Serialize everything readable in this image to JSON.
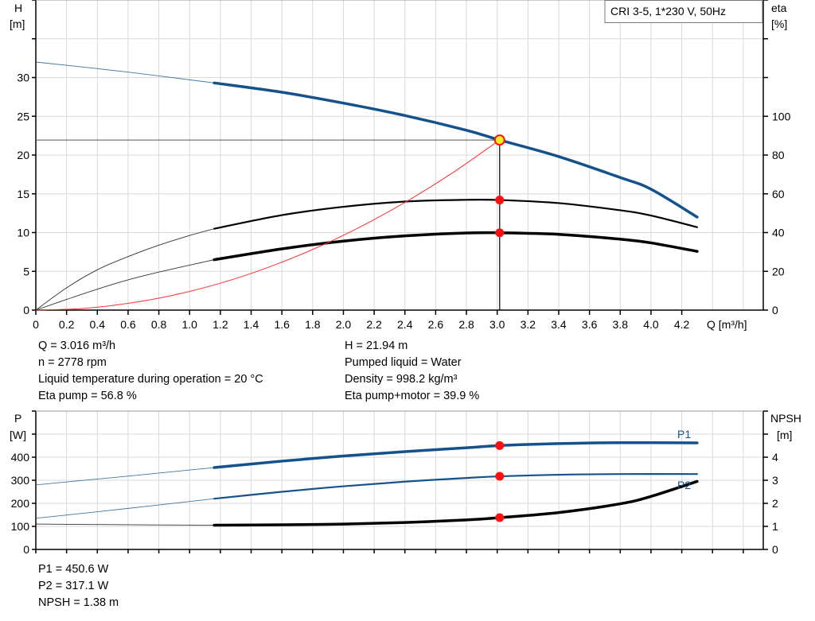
{
  "colors": {
    "head": "#15528c",
    "power": "#15528c",
    "black": "#000000",
    "system": "#ff3030",
    "dot": "#ff1010",
    "duty_point": "#ffee22",
    "grid": "#d9d9d9"
  },
  "chart_data": [
    {
      "type": "line",
      "title": "CRI 3-5, 1*230 V, 50Hz",
      "xlabel": "Q [m³/h]",
      "ylabel_left": [
        "H",
        "[m]"
      ],
      "ylabel_right": [
        "eta",
        "[%]"
      ],
      "xlim": [
        0,
        4.73
      ],
      "ylim_left": [
        0,
        40
      ],
      "ylim_right": [
        0,
        160
      ],
      "xticks": [
        "0",
        "0.2",
        "0.4",
        "0.6",
        "0.8",
        "1.0",
        "1.2",
        "1.4",
        "1.6",
        "1.8",
        "2.0",
        "2.2",
        "2.4",
        "2.6",
        "2.8",
        "3.0",
        "3.2",
        "3.4",
        "3.6",
        "3.8",
        "4.0",
        "4.2"
      ],
      "yticks_left": [
        "0",
        "5",
        "10",
        "15",
        "20",
        "25",
        "30"
      ],
      "yticks_right": [
        "0",
        "20",
        "40",
        "60",
        "80",
        "100"
      ],
      "grid": true,
      "series": [
        {
          "key": "head",
          "axis": "left",
          "thin_until": 1.16,
          "x": [
            0,
            0.6,
            1.16,
            1.6,
            2.0,
            2.4,
            2.8,
            3.016,
            3.4,
            3.8,
            4.0,
            4.3
          ],
          "y": [
            32.0,
            30.7,
            29.3,
            28.1,
            26.7,
            25.1,
            23.2,
            21.94,
            19.8,
            17.1,
            15.6,
            12.0
          ]
        },
        {
          "key": "eta_pump",
          "axis": "right",
          "thin_until": 1.16,
          "x": [
            0,
            0.2,
            0.4,
            0.6,
            0.8,
            1.0,
            1.16,
            1.6,
            2.0,
            2.4,
            2.8,
            3.016,
            3.4,
            3.8,
            4.0,
            4.3
          ],
          "y": [
            0,
            11.5,
            20.8,
            27.6,
            33.5,
            38.5,
            42.0,
            49.0,
            53.3,
            56.0,
            56.9,
            56.8,
            55.2,
            51.5,
            48.8,
            42.8
          ]
        },
        {
          "key": "eta_pump_motor",
          "axis": "right",
          "thin_until": 1.16,
          "x": [
            0,
            0.2,
            0.4,
            0.6,
            0.8,
            1.0,
            1.16,
            1.6,
            2.0,
            2.4,
            2.8,
            3.016,
            3.4,
            3.8,
            4.0,
            4.3
          ],
          "y": [
            0,
            5.5,
            10.8,
            15.6,
            19.6,
            23.2,
            26.0,
            31.6,
            35.6,
            38.3,
            39.8,
            39.9,
            39.1,
            36.6,
            34.7,
            30.3
          ]
        },
        {
          "key": "system",
          "axis": "left",
          "x": [
            0,
            0.3,
            0.6,
            0.9,
            1.2,
            1.5,
            1.8,
            2.1,
            2.4,
            2.7,
            3.016
          ],
          "y": [
            0,
            0.2,
            0.87,
            1.95,
            3.47,
            5.43,
            7.82,
            10.64,
            13.89,
            17.58,
            21.94
          ]
        }
      ],
      "duty_point": {
        "x": 3.016,
        "y": 21.94
      },
      "markers": [
        {
          "x": 3.016,
          "y": 56.8,
          "axis": "right"
        },
        {
          "x": 3.016,
          "y": 39.9,
          "axis": "right"
        }
      ]
    },
    {
      "type": "line",
      "ylabel_left": [
        "P",
        "[W]"
      ],
      "ylabel_right": [
        "NPSH",
        "[m]"
      ],
      "xlim": [
        0,
        4.73
      ],
      "ylim_left": [
        0,
        600
      ],
      "ylim_right": [
        0,
        6
      ],
      "yticks_left": [
        "0",
        "100",
        "200",
        "300",
        "400"
      ],
      "yticks_right": [
        "0",
        "1",
        "2",
        "3",
        "4"
      ],
      "grid": true,
      "series": [
        {
          "key": "p1",
          "name": "P1",
          "axis": "left",
          "thin_until": 1.16,
          "x": [
            0,
            0.6,
            1.16,
            1.6,
            2.0,
            2.4,
            2.8,
            3.016,
            3.4,
            3.8,
            4.3
          ],
          "y": [
            280,
            318,
            355,
            383,
            405,
            424,
            441,
            450.6,
            459,
            463,
            462
          ]
        },
        {
          "key": "p2",
          "name": "P2",
          "axis": "left",
          "thin_until": 1.16,
          "x": [
            0,
            0.6,
            1.16,
            1.6,
            2.0,
            2.4,
            2.8,
            3.016,
            3.4,
            3.8,
            4.3
          ],
          "y": [
            135,
            178,
            220,
            250,
            274,
            294,
            310,
            317.1,
            324,
            327,
            327
          ]
        },
        {
          "key": "npsh",
          "axis": "right",
          "thin_until": 1.16,
          "x": [
            0,
            0.6,
            1.16,
            1.6,
            2.0,
            2.4,
            2.8,
            3.016,
            3.4,
            3.8,
            4.0,
            4.3
          ],
          "y": [
            1.1,
            1.07,
            1.05,
            1.07,
            1.1,
            1.17,
            1.28,
            1.38,
            1.6,
            1.98,
            2.3,
            2.95
          ]
        }
      ],
      "markers": [
        {
          "x": 3.016,
          "y": 450.6,
          "axis": "left"
        },
        {
          "x": 3.016,
          "y": 317.1,
          "axis": "left"
        },
        {
          "x": 3.016,
          "y": 1.38,
          "axis": "right"
        }
      ]
    }
  ],
  "info_left": [
    "Q = 3.016 m³/h",
    "n = 2778 rpm",
    "Liquid temperature during operation = 20 °C",
    "Eta pump = 56.8 %"
  ],
  "info_right": [
    "H = 21.94 m",
    "Pumped liquid = Water",
    "Density = 998.2 kg/m³",
    "Eta pump+motor = 39.9 %"
  ],
  "info_bottom": [
    "P1 = 450.6 W",
    "P2 = 317.1 W",
    "NPSH = 1.38 m"
  ]
}
